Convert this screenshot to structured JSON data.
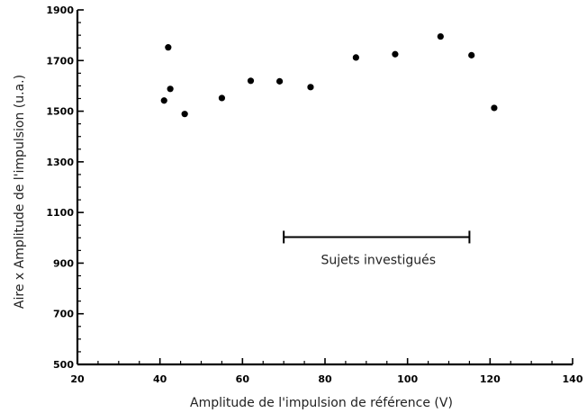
{
  "chart_data": {
    "type": "scatter",
    "title": "",
    "xlabel": "Amplitude de l'impulsion de référence (V)",
    "ylabel": "Aire x Amplitude de l'impulsion (u.a.)",
    "xlim": [
      20,
      140
    ],
    "ylim": [
      500,
      1900
    ],
    "x_ticks": [
      20,
      40,
      60,
      80,
      100,
      120,
      140
    ],
    "y_ticks": [
      500,
      700,
      900,
      1100,
      1300,
      1500,
      1700,
      1900
    ],
    "y_tick_labels": [
      "500",
      "700",
      "900",
      "1100",
      "1300",
      "1500",
      "1700",
      "1900"
    ],
    "grid": false,
    "points": [
      {
        "x": 41,
        "y": 1542
      },
      {
        "x": 42,
        "y": 1752
      },
      {
        "x": 42.5,
        "y": 1588
      },
      {
        "x": 46,
        "y": 1489
      },
      {
        "x": 55,
        "y": 1552
      },
      {
        "x": 62,
        "y": 1620
      },
      {
        "x": 69,
        "y": 1618
      },
      {
        "x": 76.5,
        "y": 1595
      },
      {
        "x": 87.5,
        "y": 1712
      },
      {
        "x": 97,
        "y": 1725
      },
      {
        "x": 108,
        "y": 1795
      },
      {
        "x": 115.5,
        "y": 1721
      },
      {
        "x": 121,
        "y": 1513
      }
    ],
    "annotation": {
      "label": "Sujets investigués",
      "x_start": 70,
      "x_end": 115,
      "y": 1003
    }
  }
}
